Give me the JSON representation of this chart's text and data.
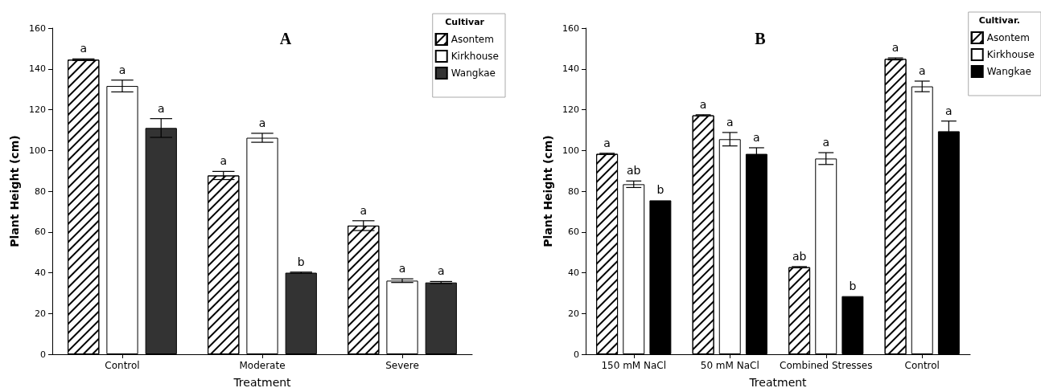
{
  "chart_data": [
    {
      "type": "bar",
      "title": "A",
      "xlabel": "Treatment",
      "ylabel": "Plant Height (cm)",
      "legend_title": "Cultivar",
      "categories": [
        "Control",
        "Moderate",
        "Severe"
      ],
      "series": [
        {
          "name": "Asontem",
          "color": "#ffffff",
          "values": [
            144.5,
            87.7,
            63.1
          ],
          "errors": [
            0.4,
            2,
            2.4
          ],
          "value_labels": [
            "a",
            "a",
            "a"
          ]
        },
        {
          "name": "Kirkhouse",
          "color": "#ffffff",
          "values": [
            131.6,
            106.2,
            36.1
          ],
          "errors": [
            2.9,
            2.2,
            0.9
          ],
          "value_labels": [
            "a",
            "a",
            "a"
          ]
        },
        {
          "name": "Wangkae",
          "color": "#333333",
          "values": [
            111,
            40,
            35.2
          ],
          "errors": [
            4.6,
            0.3,
            0.5
          ],
          "value_labels": [
            "a",
            "b",
            "a"
          ]
        }
      ],
      "ylim": [
        0,
        160
      ],
      "yticks": [
        0,
        20,
        40,
        60,
        80,
        100,
        120,
        140,
        160
      ],
      "grid": false,
      "legend": "top right"
    },
    {
      "type": "bar",
      "title": "B",
      "xlabel": "Treatment",
      "ylabel": "Plant Height (cm)",
      "legend_title": "Cultivar.",
      "categories": [
        "150 mM NaCl",
        "50 mM NaCl",
        "Combined Stresses",
        "Control"
      ],
      "series": [
        {
          "name": "Asontem",
          "color": "#ffffff",
          "values": [
            98.3,
            117.2,
            42.7,
            144.9
          ],
          "errors": [
            0.3,
            0.3,
            0.3,
            0.5
          ],
          "value_labels": [
            "a",
            "a",
            "ab",
            "a"
          ]
        },
        {
          "name": "Kirkhouse",
          "color": "#ffffff",
          "values": [
            83.4,
            105.5,
            96,
            131.4
          ],
          "errors": [
            1.6,
            3.3,
            2.9,
            2.6
          ],
          "value_labels": [
            "ab",
            "a",
            "a",
            "a"
          ]
        },
        {
          "name": "Wangkae",
          "color": "#000000",
          "values": [
            75.5,
            98.3,
            28.5,
            109.4
          ],
          "errors": [
            null,
            3,
            null,
            5
          ],
          "value_labels": [
            "b",
            "a",
            "b",
            "a"
          ]
        }
      ],
      "ylim": [
        0,
        160
      ],
      "yticks": [
        0,
        20,
        40,
        60,
        80,
        100,
        120,
        140,
        160
      ],
      "grid": false,
      "legend": "top right"
    }
  ]
}
